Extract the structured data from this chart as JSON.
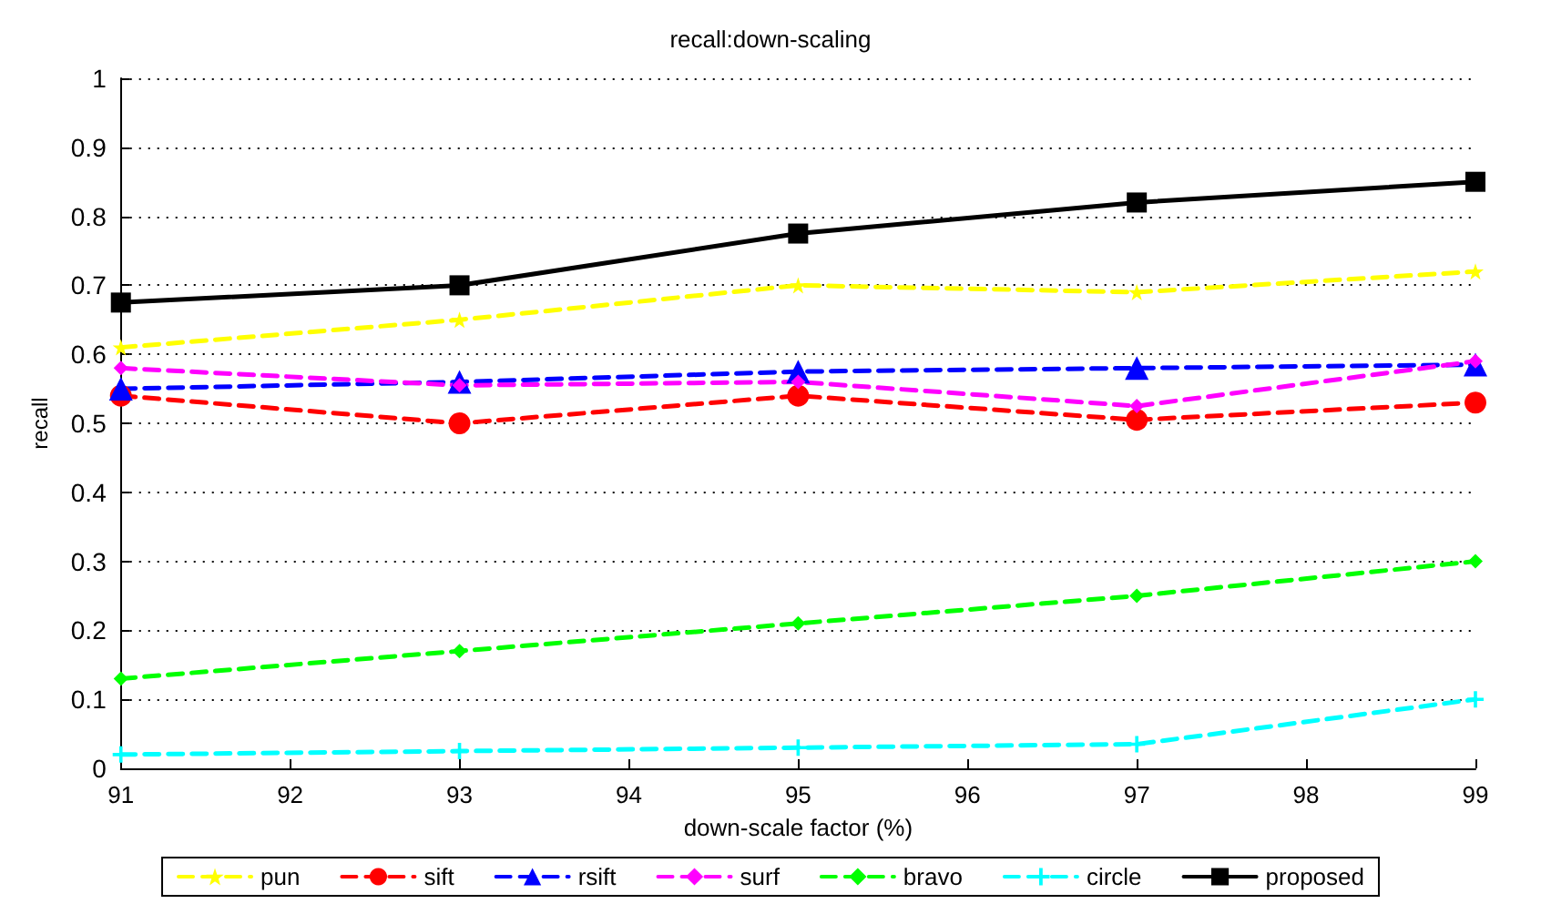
{
  "chart_data": {
    "type": "line",
    "title": "recall:down-scaling",
    "xlabel": "down-scale factor (%)",
    "ylabel": "recall",
    "x": [
      91,
      93,
      95,
      97,
      99
    ],
    "xlim": [
      91,
      99
    ],
    "xticks": [
      91,
      92,
      93,
      94,
      95,
      96,
      97,
      98,
      99
    ],
    "ylim": [
      0,
      1
    ],
    "yticks": [
      0,
      0.1,
      0.2,
      0.3,
      0.4,
      0.5,
      0.6,
      0.7,
      0.8,
      0.9,
      1
    ],
    "grid": "y",
    "legend": "bottom",
    "series": [
      {
        "name": "pun",
        "color": "#ffff00",
        "marker": "star",
        "line_style": "dashed",
        "values": [
          0.61,
          0.65,
          0.7,
          0.69,
          0.72
        ]
      },
      {
        "name": "sift",
        "color": "#ff0000",
        "marker": "circle",
        "line_style": "dashed",
        "values": [
          0.54,
          0.5,
          0.54,
          0.505,
          0.53
        ]
      },
      {
        "name": "rsift",
        "color": "#0000ff",
        "marker": "triangle",
        "line_style": "dashed",
        "values": [
          0.55,
          0.56,
          0.575,
          0.58,
          0.585
        ]
      },
      {
        "name": "surf",
        "color": "#ff00ff",
        "marker": "diamond",
        "line_style": "dashed",
        "values": [
          0.58,
          0.555,
          0.56,
          0.525,
          0.59
        ]
      },
      {
        "name": "bravo",
        "color": "#00ff00",
        "marker": "diamond",
        "line_style": "dashed",
        "values": [
          0.13,
          0.17,
          0.21,
          0.25,
          0.3
        ]
      },
      {
        "name": "circle",
        "color": "#00ffff",
        "marker": "cross",
        "line_style": "dashed",
        "values": [
          0.02,
          0.025,
          0.03,
          0.035,
          0.1
        ]
      },
      {
        "name": "proposed",
        "color": "#000000",
        "marker": "square",
        "line_style": "solid",
        "values": [
          0.675,
          0.7,
          0.775,
          0.82,
          0.85
        ]
      }
    ]
  }
}
